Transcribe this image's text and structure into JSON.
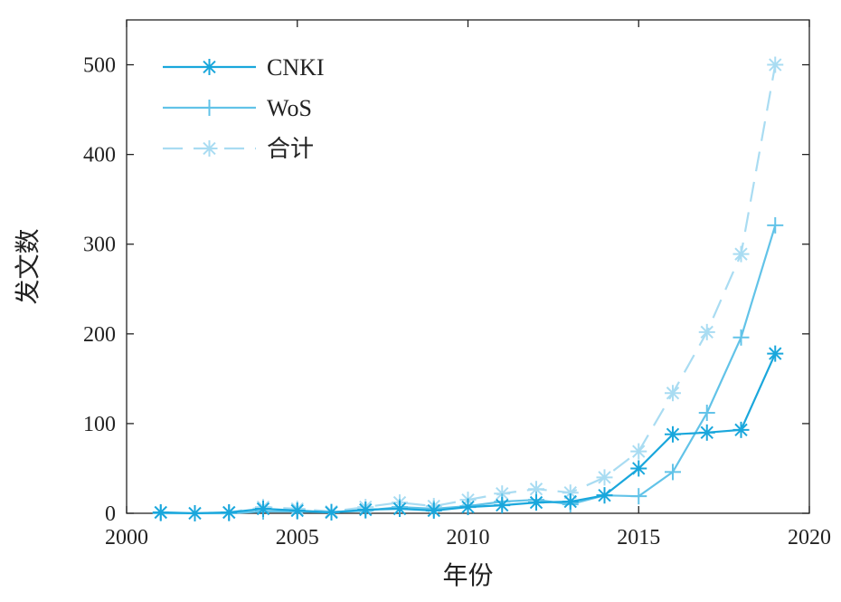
{
  "chart_data": {
    "type": "line",
    "xlabel": "年份",
    "ylabel": "发文数",
    "xlim": [
      2000,
      2020
    ],
    "ylim": [
      0,
      550
    ],
    "xticks": [
      2000,
      2005,
      2010,
      2015,
      2020
    ],
    "yticks": [
      0,
      100,
      200,
      300,
      400,
      500
    ],
    "grid": false,
    "legend_position": "top-left",
    "x": [
      2001,
      2002,
      2003,
      2004,
      2005,
      2006,
      2007,
      2008,
      2009,
      2010,
      2011,
      2012,
      2013,
      2014,
      2015,
      2016,
      2017,
      2018,
      2019
    ],
    "series": [
      {
        "name": "CNKI",
        "color": "#1aa7dc",
        "marker": "asterisk",
        "dash": "solid",
        "values": [
          1,
          0,
          1,
          5,
          3,
          1,
          4,
          5,
          3,
          7,
          9,
          12,
          13,
          20,
          50,
          88,
          90,
          93,
          178
        ]
      },
      {
        "name": "WoS",
        "color": "#62c3e8",
        "marker": "plus",
        "dash": "solid",
        "values": [
          0,
          0,
          0,
          2,
          2,
          1,
          3,
          7,
          5,
          8,
          13,
          15,
          10,
          20,
          19,
          46,
          112,
          196,
          321
        ]
      },
      {
        "name": "合计",
        "color": "#a9dcf2",
        "marker": "asterisk",
        "dash": "dashed",
        "values": [
          1,
          0,
          1,
          7,
          5,
          2,
          7,
          12,
          8,
          15,
          22,
          27,
          23,
          40,
          69,
          134,
          202,
          289,
          500
        ]
      }
    ]
  }
}
